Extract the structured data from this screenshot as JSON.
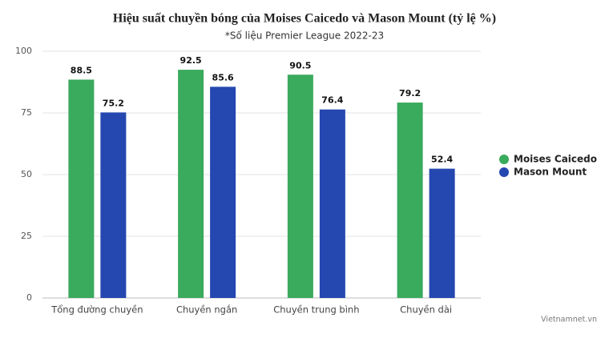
{
  "chart_data": {
    "type": "bar",
    "title": "Hiệu suất chuyền bóng của Moises Caicedo và Mason Mount (tỷ lệ %)",
    "subtitle": "*Số liệu Premier League 2022-23",
    "categories": [
      "Tổng đường chuyền",
      "Chuyền ngắn",
      "Chuyền trung bình",
      "Chuyền dài"
    ],
    "series": [
      {
        "name": "Moises Caicedo",
        "color": "#3aaa5c",
        "values": [
          88.5,
          92.5,
          90.5,
          79.2
        ]
      },
      {
        "name": "Mason Mount",
        "color": "#2447b0",
        "values": [
          75.2,
          85.6,
          76.4,
          52.4
        ]
      }
    ],
    "ylim": [
      0,
      100
    ],
    "yticks": [
      0,
      25,
      50,
      75,
      100
    ],
    "grid": true,
    "legend": "right",
    "credit": "Vietnamnet.vn"
  }
}
